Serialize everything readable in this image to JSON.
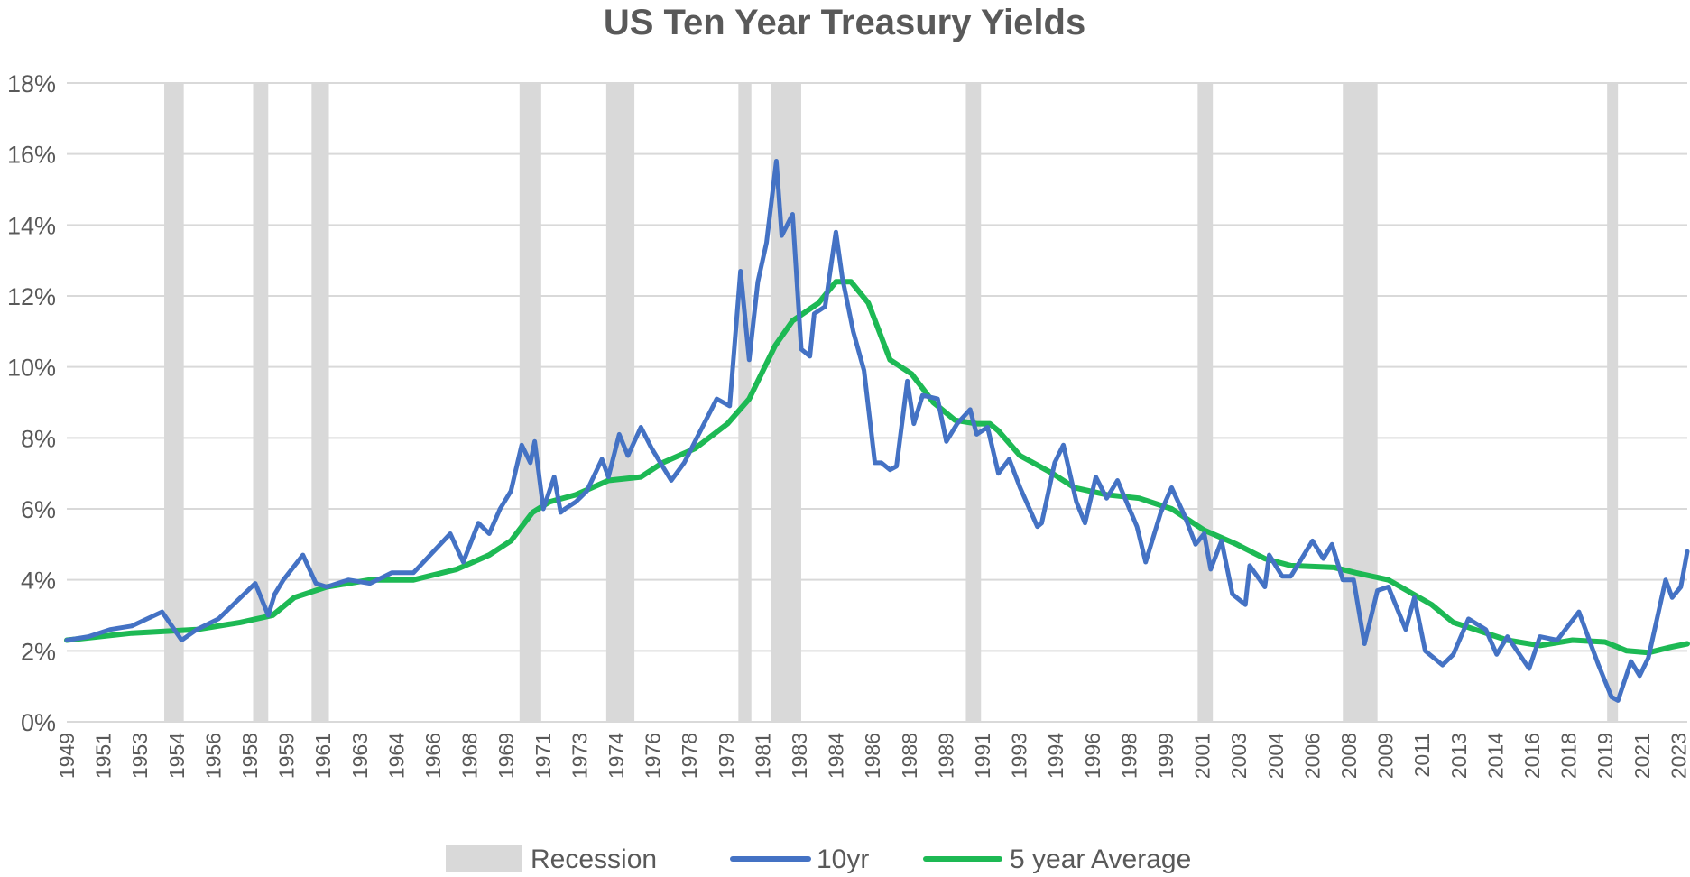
{
  "chart_data": {
    "type": "line",
    "title": "US Ten Year Treasury Yields",
    "xlabel": "",
    "ylabel": "",
    "ylim": [
      0,
      18
    ],
    "y_ticks": [
      "0%",
      "2%",
      "4%",
      "6%",
      "8%",
      "10%",
      "12%",
      "14%",
      "16%",
      "18%"
    ],
    "y_tick_values": [
      0,
      2,
      4,
      6,
      8,
      10,
      12,
      14,
      16,
      18
    ],
    "x_ticks": [
      "1949",
      "1951",
      "1953",
      "1954",
      "1956",
      "1958",
      "1959",
      "1961",
      "1963",
      "1964",
      "1966",
      "1968",
      "1969",
      "1971",
      "1973",
      "1974",
      "1976",
      "1978",
      "1979",
      "1981",
      "1983",
      "1984",
      "1986",
      "1988",
      "1989",
      "1991",
      "1993",
      "1994",
      "1996",
      "1998",
      "1999",
      "2001",
      "2003",
      "2004",
      "2006",
      "2008",
      "2009",
      "2011",
      "2013",
      "2014",
      "2016",
      "2018",
      "2019",
      "2021",
      "2023"
    ],
    "xlim": [
      1949,
      2023.8
    ],
    "grid": "horizontal",
    "legend_position": "bottom",
    "colors": {
      "recession": "#d9d9d9",
      "tenyr": "#4472c4",
      "avg": "#1db954",
      "grid": "#d9d9d9",
      "text": "#595959"
    },
    "recessions": {
      "name": "Recession",
      "periods": [
        [
          1953.5,
          1954.4
        ],
        [
          1957.6,
          1958.3
        ],
        [
          1960.3,
          1961.1
        ],
        [
          1969.9,
          1970.9
        ],
        [
          1973.9,
          1975.2
        ],
        [
          1980.0,
          1980.6
        ],
        [
          1981.5,
          1982.9
        ],
        [
          1990.5,
          1991.2
        ],
        [
          2001.2,
          2001.9
        ],
        [
          2007.9,
          2009.5
        ],
        [
          2020.1,
          2020.4
        ]
      ]
    },
    "series": [
      {
        "name": "10yr",
        "points": [
          [
            1949,
            2.3
          ],
          [
            1950,
            2.4
          ],
          [
            1951,
            2.6
          ],
          [
            1952,
            2.7
          ],
          [
            1953.4,
            3.1
          ],
          [
            1954.3,
            2.3
          ],
          [
            1955,
            2.6
          ],
          [
            1956,
            2.9
          ],
          [
            1957.7,
            3.9
          ],
          [
            1958.3,
            3.0
          ],
          [
            1958.6,
            3.6
          ],
          [
            1959,
            4.0
          ],
          [
            1959.9,
            4.7
          ],
          [
            1960.5,
            3.9
          ],
          [
            1961,
            3.8
          ],
          [
            1962,
            4.0
          ],
          [
            1963,
            3.9
          ],
          [
            1964,
            4.2
          ],
          [
            1965,
            4.2
          ],
          [
            1966.7,
            5.3
          ],
          [
            1967.3,
            4.5
          ],
          [
            1968,
            5.6
          ],
          [
            1968.5,
            5.3
          ],
          [
            1969,
            6.0
          ],
          [
            1969.5,
            6.5
          ],
          [
            1970,
            7.8
          ],
          [
            1970.4,
            7.3
          ],
          [
            1970.6,
            7.9
          ],
          [
            1971,
            6.0
          ],
          [
            1971.5,
            6.9
          ],
          [
            1971.8,
            5.9
          ],
          [
            1972,
            6.0
          ],
          [
            1972.5,
            6.2
          ],
          [
            1973,
            6.5
          ],
          [
            1973.7,
            7.4
          ],
          [
            1974,
            6.9
          ],
          [
            1974.5,
            8.1
          ],
          [
            1974.9,
            7.5
          ],
          [
            1975.5,
            8.3
          ],
          [
            1976,
            7.7
          ],
          [
            1976.9,
            6.8
          ],
          [
            1977.5,
            7.3
          ],
          [
            1978,
            7.9
          ],
          [
            1978.5,
            8.5
          ],
          [
            1979,
            9.1
          ],
          [
            1979.6,
            8.9
          ],
          [
            1980.1,
            12.7
          ],
          [
            1980.5,
            10.2
          ],
          [
            1980.9,
            12.4
          ],
          [
            1981.3,
            13.5
          ],
          [
            1981.75,
            15.8
          ],
          [
            1982,
            13.7
          ],
          [
            1982.5,
            14.3
          ],
          [
            1982.9,
            10.5
          ],
          [
            1983.3,
            10.3
          ],
          [
            1983.5,
            11.5
          ],
          [
            1984,
            11.7
          ],
          [
            1984.5,
            13.8
          ],
          [
            1984.8,
            12.5
          ],
          [
            1985.3,
            11.0
          ],
          [
            1985.8,
            9.9
          ],
          [
            1986.3,
            7.3
          ],
          [
            1986.6,
            7.3
          ],
          [
            1987,
            7.1
          ],
          [
            1987.3,
            7.2
          ],
          [
            1987.8,
            9.6
          ],
          [
            1988.1,
            8.4
          ],
          [
            1988.5,
            9.2
          ],
          [
            1989.2,
            9.1
          ],
          [
            1989.6,
            7.9
          ],
          [
            1990.1,
            8.4
          ],
          [
            1990.7,
            8.8
          ],
          [
            1991,
            8.1
          ],
          [
            1991.5,
            8.3
          ],
          [
            1992,
            7.0
          ],
          [
            1992.5,
            7.4
          ],
          [
            1993,
            6.6
          ],
          [
            1993.8,
            5.5
          ],
          [
            1994,
            5.6
          ],
          [
            1994.6,
            7.3
          ],
          [
            1995,
            7.8
          ],
          [
            1995.6,
            6.2
          ],
          [
            1996,
            5.6
          ],
          [
            1996.5,
            6.9
          ],
          [
            1997,
            6.3
          ],
          [
            1997.5,
            6.8
          ],
          [
            1998.4,
            5.5
          ],
          [
            1998.8,
            4.5
          ],
          [
            1999.5,
            5.9
          ],
          [
            2000,
            6.6
          ],
          [
            2000.6,
            5.8
          ],
          [
            2001.1,
            5.0
          ],
          [
            2001.5,
            5.3
          ],
          [
            2001.8,
            4.3
          ],
          [
            2002.3,
            5.1
          ],
          [
            2002.8,
            3.6
          ],
          [
            2003.4,
            3.3
          ],
          [
            2003.6,
            4.4
          ],
          [
            2004.3,
            3.8
          ],
          [
            2004.5,
            4.7
          ],
          [
            2005.1,
            4.1
          ],
          [
            2005.5,
            4.1
          ],
          [
            2006.5,
            5.1
          ],
          [
            2007,
            4.6
          ],
          [
            2007.4,
            5.0
          ],
          [
            2007.9,
            4.0
          ],
          [
            2008.4,
            4.0
          ],
          [
            2008.9,
            2.2
          ],
          [
            2009.5,
            3.7
          ],
          [
            2010,
            3.8
          ],
          [
            2010.8,
            2.6
          ],
          [
            2011.2,
            3.5
          ],
          [
            2011.7,
            2.0
          ],
          [
            2012.5,
            1.6
          ],
          [
            2013,
            1.9
          ],
          [
            2013.7,
            2.9
          ],
          [
            2014.5,
            2.6
          ],
          [
            2015,
            1.9
          ],
          [
            2015.5,
            2.4
          ],
          [
            2016.5,
            1.5
          ],
          [
            2017,
            2.4
          ],
          [
            2017.8,
            2.3
          ],
          [
            2018.8,
            3.1
          ],
          [
            2019.7,
            1.6
          ],
          [
            2020.3,
            0.7
          ],
          [
            2020.6,
            0.6
          ],
          [
            2021.2,
            1.7
          ],
          [
            2021.6,
            1.3
          ],
          [
            2022,
            1.8
          ],
          [
            2022.8,
            4.0
          ],
          [
            2023.1,
            3.5
          ],
          [
            2023.5,
            3.8
          ],
          [
            2023.8,
            4.8
          ]
        ]
      },
      {
        "name": "5 year Average",
        "points": [
          [
            1949,
            2.3
          ],
          [
            1952,
            2.5
          ],
          [
            1955,
            2.6
          ],
          [
            1957,
            2.8
          ],
          [
            1958.5,
            3.0
          ],
          [
            1959.5,
            3.5
          ],
          [
            1961,
            3.8
          ],
          [
            1963,
            4.0
          ],
          [
            1965,
            4.0
          ],
          [
            1967,
            4.3
          ],
          [
            1968.5,
            4.7
          ],
          [
            1969.5,
            5.1
          ],
          [
            1970.5,
            5.9
          ],
          [
            1971.3,
            6.2
          ],
          [
            1972.5,
            6.4
          ],
          [
            1974,
            6.8
          ],
          [
            1975.5,
            6.9
          ],
          [
            1976.5,
            7.3
          ],
          [
            1978,
            7.7
          ],
          [
            1979.5,
            8.4
          ],
          [
            1980.5,
            9.1
          ],
          [
            1981.7,
            10.6
          ],
          [
            1982.5,
            11.3
          ],
          [
            1983.7,
            11.8
          ],
          [
            1984.5,
            12.4
          ],
          [
            1985.2,
            12.4
          ],
          [
            1986,
            11.8
          ],
          [
            1987,
            10.2
          ],
          [
            1988,
            9.8
          ],
          [
            1989,
            9.0
          ],
          [
            1990,
            8.5
          ],
          [
            1991,
            8.4
          ],
          [
            1991.6,
            8.4
          ],
          [
            1992,
            8.2
          ],
          [
            1993,
            7.5
          ],
          [
            1994.5,
            7.0
          ],
          [
            1995.5,
            6.6
          ],
          [
            1997,
            6.4
          ],
          [
            1998.5,
            6.3
          ],
          [
            2000,
            6.0
          ],
          [
            2001.5,
            5.4
          ],
          [
            2003,
            5.0
          ],
          [
            2004.3,
            4.6
          ],
          [
            2005.5,
            4.4
          ],
          [
            2007.5,
            4.35
          ],
          [
            2008.5,
            4.2
          ],
          [
            2010,
            4.0
          ],
          [
            2012,
            3.3
          ],
          [
            2013,
            2.8
          ],
          [
            2014,
            2.6
          ],
          [
            2015.5,
            2.3
          ],
          [
            2017,
            2.15
          ],
          [
            2018.5,
            2.3
          ],
          [
            2020,
            2.25
          ],
          [
            2021,
            2.0
          ],
          [
            2022,
            1.95
          ],
          [
            2023,
            2.1
          ],
          [
            2023.8,
            2.2
          ]
        ]
      }
    ]
  }
}
